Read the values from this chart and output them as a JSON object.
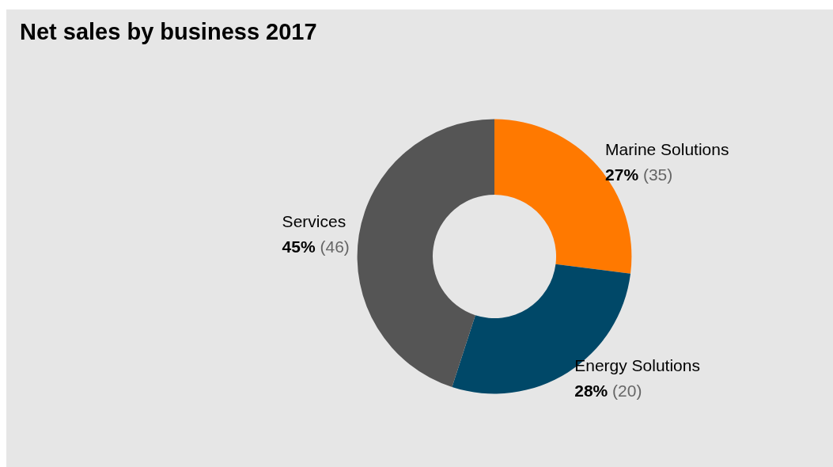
{
  "chart_data": {
    "type": "donut",
    "title": "Net sales by business 2017",
    "categories": [
      "Marine Solutions",
      "Energy Solutions",
      "Services"
    ],
    "values": [
      27,
      28,
      45
    ],
    "colors": [
      "#ff7900",
      "#004868",
      "#555555"
    ],
    "value_labels": [
      "27% (35)",
      "28% (20)",
      "45% (46)"
    ],
    "legend": false
  }
}
